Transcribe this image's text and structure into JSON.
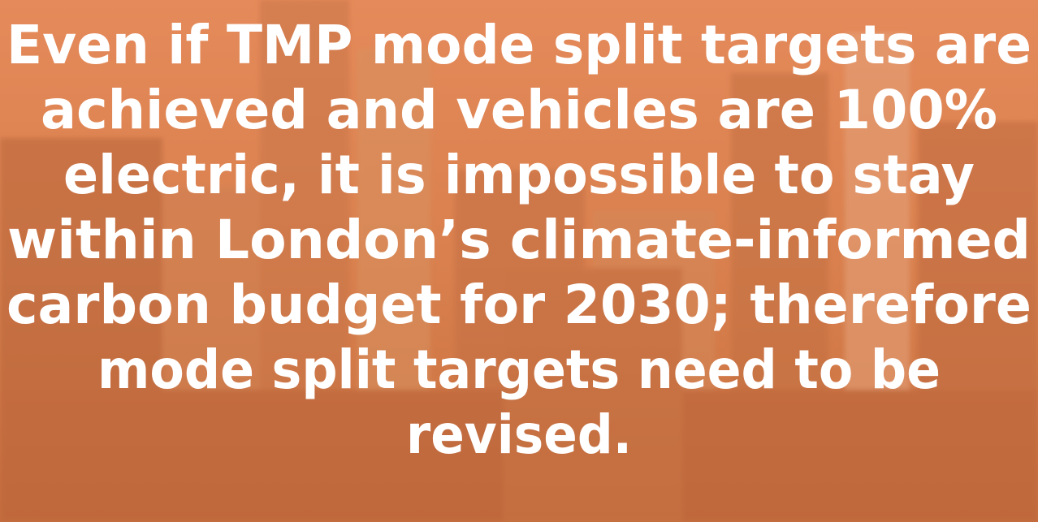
{
  "lines": [
    "Even if TMP mode split targets are",
    "achieved and vehicles are 100%",
    "electric, it is impossible to stay",
    "within London’s climate-informed",
    "carbon budget for 2030; therefore",
    "mode split targets need to be",
    "revised."
  ]
}
